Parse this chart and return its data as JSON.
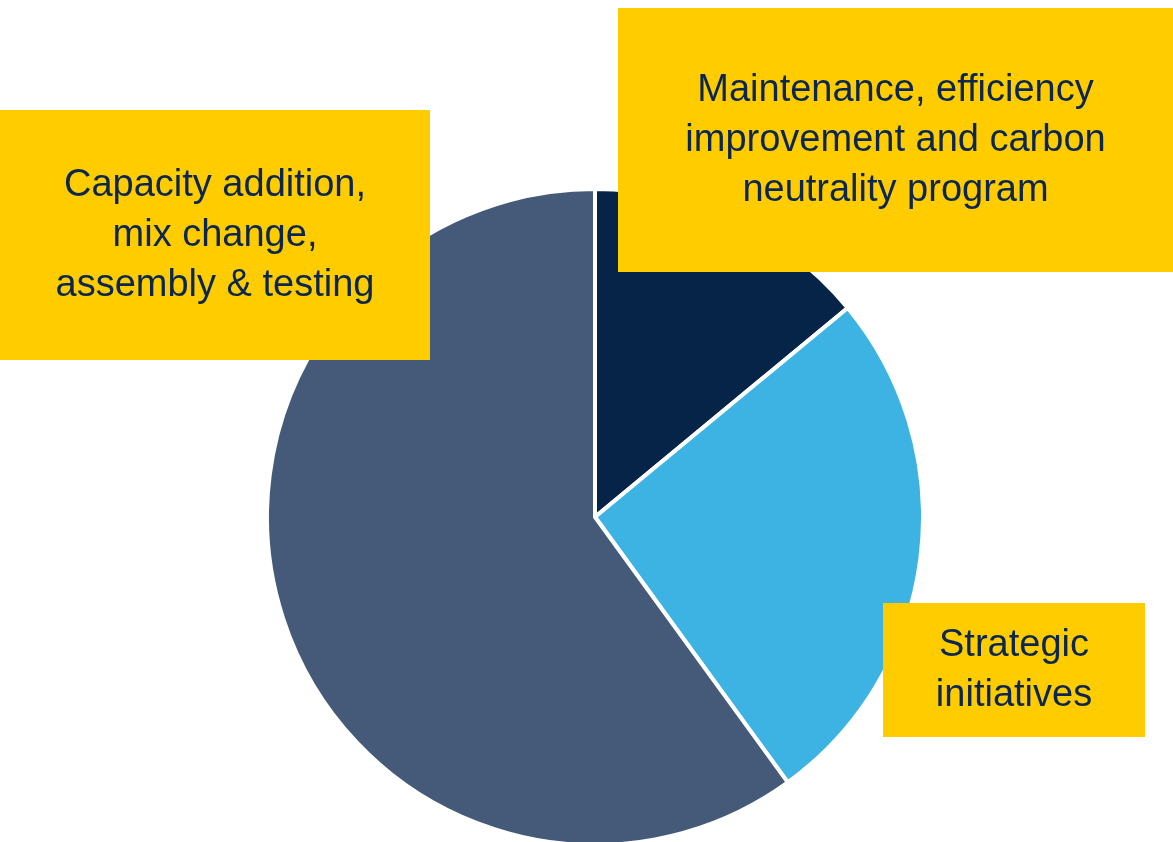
{
  "chart_data": {
    "type": "pie",
    "categories": [
      "Maintenance, efficiency improvement and carbon neutrality program",
      "Strategic initiatives",
      "Capacity addition, mix change, assembly & testing"
    ],
    "values": [
      14,
      26,
      60
    ],
    "colors": [
      "#062448",
      "#3db3e3",
      "#445a78"
    ]
  }
}
